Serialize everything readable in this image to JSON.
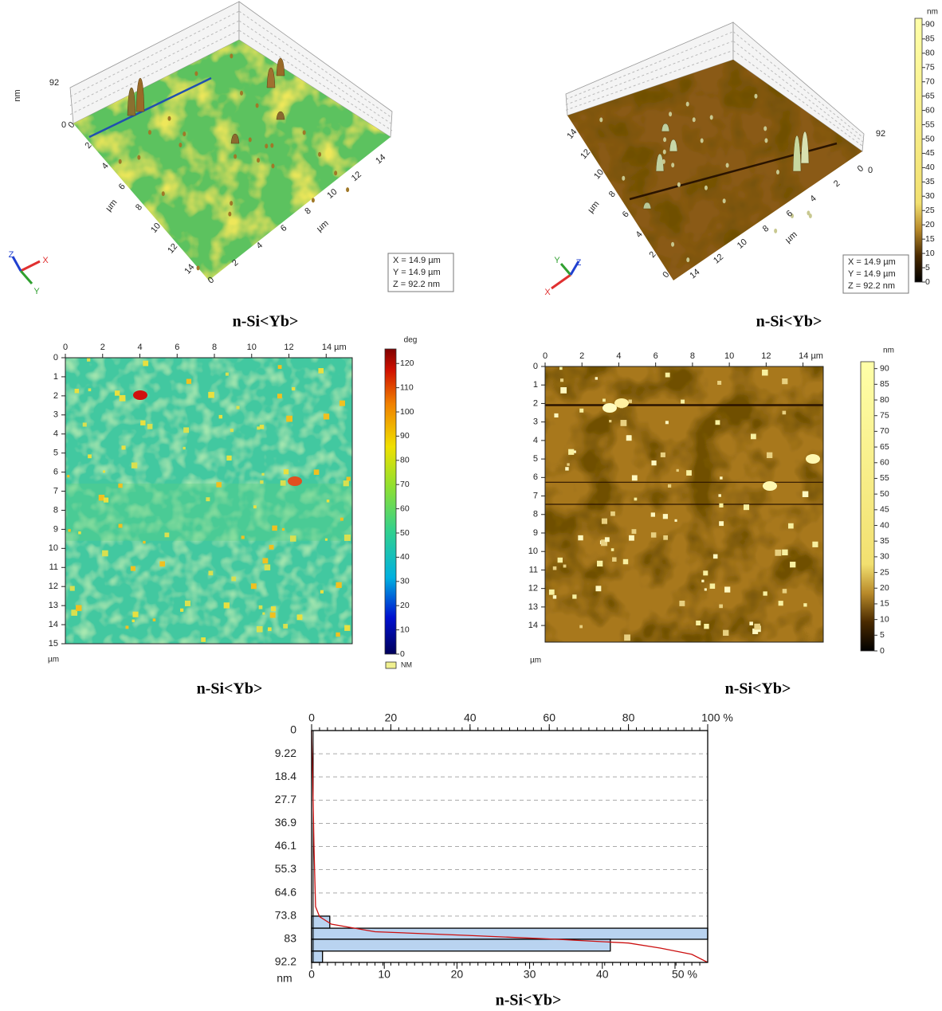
{
  "panels": [
    {
      "type": "3d",
      "caption": "n-Si<Yb>",
      "z_unit": "nm",
      "zlim": [
        0,
        92.2
      ],
      "zticks": [
        0,
        92
      ],
      "xlim": [
        0,
        14.9
      ],
      "xticks": [
        0,
        2,
        4,
        6,
        8,
        10,
        12,
        14
      ],
      "x_unit": "µm",
      "ylim": [
        0,
        14.9
      ],
      "yticks": [
        0,
        2,
        4,
        6,
        8,
        10,
        12,
        14
      ],
      "y_unit": "µm",
      "info": [
        "X = 14.9 µm",
        "Y = 14.9 µm",
        "Z = 92.2 nm"
      ],
      "triad": [
        "X",
        "Y",
        "Z"
      ]
    },
    {
      "type": "3d",
      "caption": "n-Si<Yb>",
      "zlim": [
        0,
        92.2
      ],
      "zticks": [
        0,
        92
      ],
      "xlim": [
        0,
        14.9
      ],
      "xticks": [
        0,
        2,
        4,
        6,
        8,
        10,
        12,
        14
      ],
      "x_unit": "µm",
      "ylim": [
        0,
        14.9
      ],
      "yticks": [
        0,
        2,
        4,
        6,
        8,
        10,
        12,
        14
      ],
      "y_unit": "µm",
      "info": [
        "X = 14.9 µm",
        "Y = 14.9 µm",
        "Z = 92.2 nm"
      ],
      "triad": [
        "X",
        "Y",
        "Z"
      ],
      "colorbar": {
        "label": "nm",
        "lim": [
          0,
          92.2
        ],
        "ticks": [
          0,
          5,
          10,
          15,
          20,
          25,
          30,
          35,
          40,
          45,
          50,
          55,
          60,
          65,
          70,
          75,
          80,
          85,
          90
        ]
      }
    },
    {
      "type": "map",
      "caption": "n-Si<Yb>",
      "unit": "µm",
      "xlim": [
        0,
        15.4
      ],
      "xticks": [
        0,
        2,
        4,
        6,
        8,
        10,
        12,
        {
          "value": 14,
          "label": "14 µm"
        }
      ],
      "ylim": [
        0,
        15
      ],
      "yticks": [
        0,
        1,
        2,
        3,
        4,
        5,
        6,
        7,
        8,
        9,
        10,
        11,
        12,
        13,
        14,
        15
      ],
      "colorbar": {
        "label": "deg",
        "lim": [
          0,
          126
        ],
        "ticks": [
          0,
          10,
          20,
          30,
          40,
          50,
          60,
          70,
          80,
          90,
          100,
          110,
          120
        ]
      },
      "legend": "NM"
    },
    {
      "type": "map",
      "caption": "n-Si<Yb>",
      "unit": "µm",
      "xlim": [
        0,
        15.1
      ],
      "xticks": [
        0,
        2,
        4,
        6,
        8,
        10,
        12,
        {
          "value": 14,
          "label": "14 µm"
        }
      ],
      "ylim": [
        0,
        14.9
      ],
      "yticks": [
        0,
        1,
        2,
        3,
        4,
        5,
        6,
        7,
        8,
        9,
        10,
        11,
        12,
        13,
        14
      ],
      "colorbar": {
        "label": "nm",
        "lim": [
          0,
          92.2
        ],
        "ticks": [
          0,
          5,
          10,
          15,
          20,
          25,
          30,
          35,
          40,
          45,
          50,
          55,
          60,
          65,
          70,
          75,
          80,
          85,
          90
        ]
      }
    }
  ],
  "chart_data": {
    "type": "histogram",
    "caption": "n-Si<Yb>",
    "color": "#b9d3f0",
    "grid": true,
    "bins": [
      73.8,
      78.6,
      83,
      87.7,
      92.2
    ],
    "values": [
      2.5,
      54.5,
      41.1,
      1.5
    ],
    "ylabel": "nm",
    "ylim": [
      0,
      92.2
    ],
    "yticks": [
      0,
      9.22,
      18.4,
      27.7,
      36.9,
      46.1,
      55.3,
      64.6,
      73.8,
      83,
      92.2
    ],
    "xlim": [
      0,
      54.5
    ],
    "xticks": [
      0,
      10,
      20,
      30,
      40,
      {
        "value": 50,
        "label": "50 %"
      }
    ],
    "x2lim": [
      0,
      100
    ],
    "x2ticks": [
      0,
      20,
      40,
      60,
      80,
      {
        "value": 100,
        "label": "100 %"
      }
    ],
    "cumulative": {
      "color": "#cc1010",
      "values": [
        0,
        0.3,
        0.6,
        1,
        2,
        5,
        16,
        40,
        62,
        80,
        88,
        96,
        100
      ],
      "heights": [
        0,
        20,
        46,
        70,
        74,
        77,
        80,
        81.5,
        83,
        84.5,
        86.5,
        89,
        92.2
      ]
    }
  }
}
